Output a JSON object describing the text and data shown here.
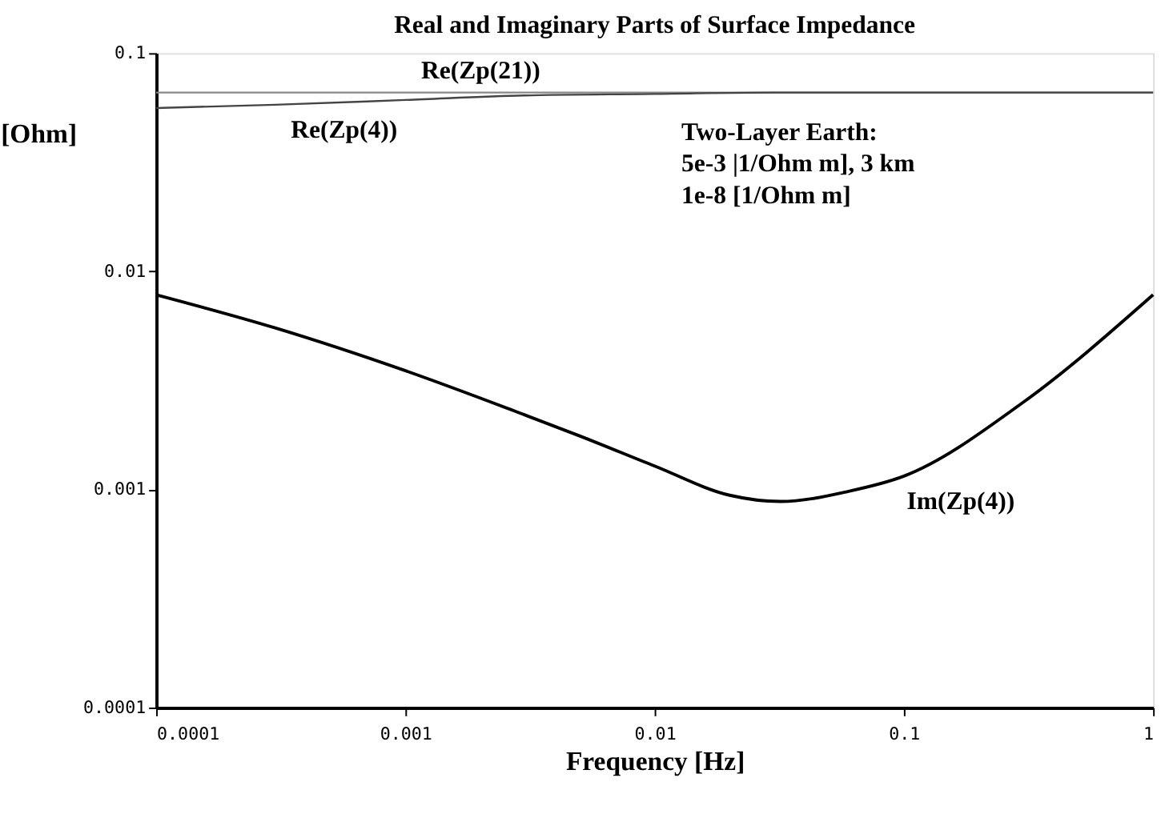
{
  "chart_data": {
    "type": "line",
    "title": "Real and Imaginary Parts  of Surface Impedance",
    "xlabel": "Frequency [Hz]",
    "ylabel": "[Ohm]",
    "log": "xy",
    "grid": false,
    "marker": "none",
    "line_style": "solid",
    "xlim": [
      0.0001,
      1
    ],
    "ylim": [
      0.0001,
      0.1
    ],
    "xticks": [
      0.0001,
      0.001,
      0.01,
      0.1,
      1
    ],
    "yticks": [
      0.0001,
      0.001,
      0.01,
      0.1
    ],
    "series": [
      {
        "name": "Re(Zp(21))",
        "color": "#888888",
        "x": [
          0.0001,
          0.001,
          0.01,
          0.1,
          1
        ],
        "values": [
          0.066,
          0.066,
          0.066,
          0.066,
          0.066
        ]
      },
      {
        "name": "Re(Zp(4))",
        "color": "#444444",
        "x": [
          0.0001,
          0.0003,
          0.001,
          0.003,
          0.01,
          0.03,
          0.1,
          1
        ],
        "values": [
          0.056,
          0.058,
          0.061,
          0.064,
          0.065,
          0.066,
          0.066,
          0.066
        ]
      },
      {
        "name": "Im(Zp(4))",
        "color": "#000000",
        "x": [
          0.0001,
          0.0003,
          0.001,
          0.003,
          0.005,
          0.01,
          0.02,
          0.032,
          0.06,
          0.1,
          0.3,
          1
        ],
        "values": [
          0.0078,
          0.0055,
          0.0035,
          0.0022,
          0.00176,
          0.00128,
          0.00094,
          0.00088,
          0.00098,
          0.00115,
          0.0025,
          0.0078
        ]
      }
    ],
    "annotations": [
      "Two-Layer Earth:",
      "5e-3 |1/Ohm m], 3 km",
      "1e-8 [1/Ohm m]"
    ]
  }
}
